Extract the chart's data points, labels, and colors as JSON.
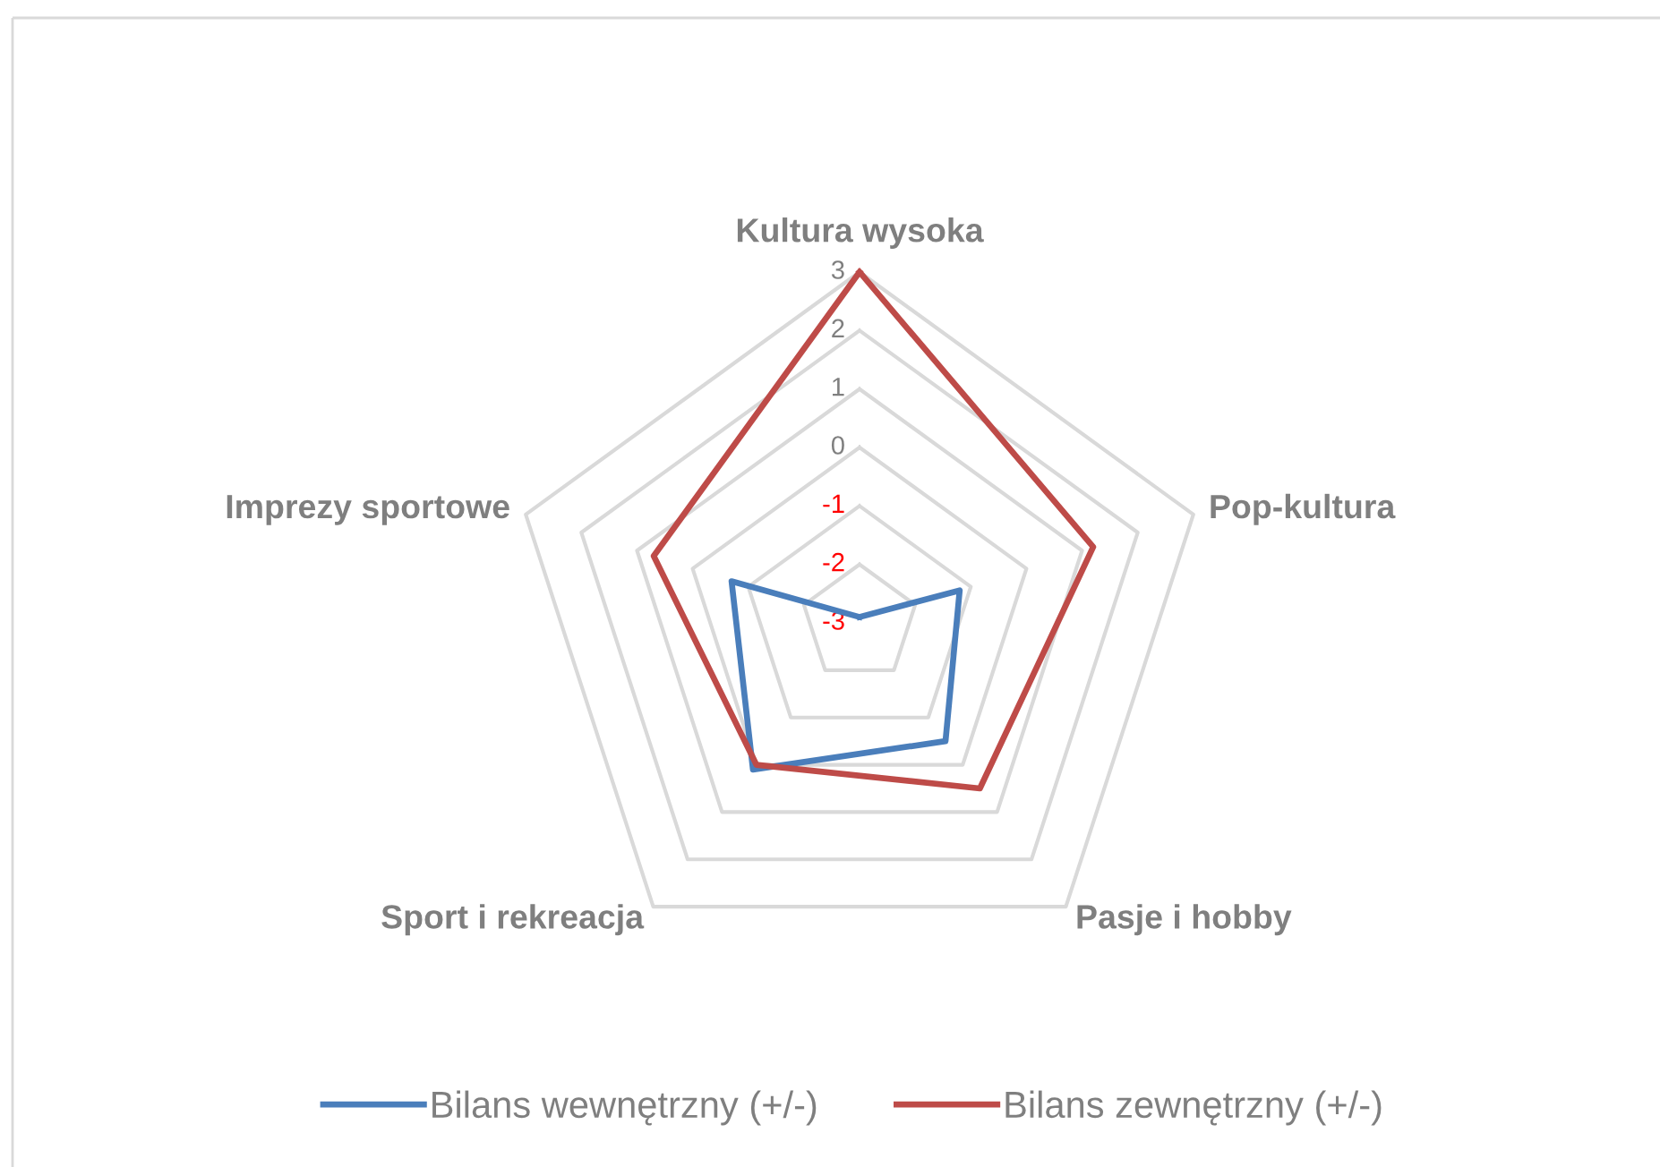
{
  "chart_data": {
    "type": "radar",
    "categories": [
      "Kultura wysoka",
      "Pop-kultura",
      "Pasje i hobby",
      "Sport i rekreacja",
      "Imprezy sportowe"
    ],
    "series": [
      {
        "name": "Bilans wewnętrzny (+/-)",
        "color": "#4a7ebb",
        "values": [
          -2.9,
          -1.2,
          -0.5,
          0.1,
          -0.7
        ]
      },
      {
        "name": "Bilans zewnętrzny (+/-)",
        "color": "#be4b48",
        "values": [
          3,
          1.2,
          0.5,
          0,
          0.7
        ]
      }
    ],
    "ylim": [
      -3,
      3
    ],
    "yticks": [
      -3,
      -2,
      -1,
      0,
      1,
      2,
      3
    ],
    "grid": true,
    "legend": "bottom",
    "marker": "none",
    "line_style": "solid"
  }
}
